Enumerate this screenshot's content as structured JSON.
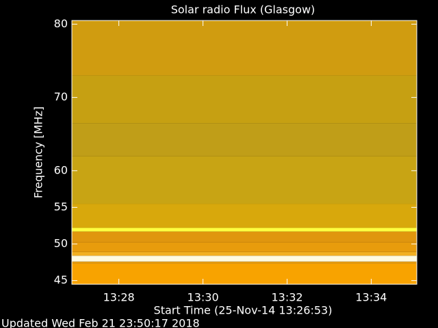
{
  "chart_data": {
    "type": "spectrogram",
    "title": "Solar radio Flux (Glasgow)",
    "x_label": "Start Time (25-Nov-14 13:26:53)",
    "y_label": "Frequency [MHz]",
    "xlim": [
      806.883,
      815.083
    ],
    "xticks": [
      {
        "value": 808,
        "label": "13:28"
      },
      {
        "value": 810,
        "label": "13:30"
      },
      {
        "value": 812,
        "label": "13:32"
      },
      {
        "value": 814,
        "label": "13:34"
      }
    ],
    "ylim": [
      44.5,
      80.5
    ],
    "yticks": [
      45,
      50,
      55,
      60,
      70,
      80
    ],
    "bands": [
      {
        "range": [
          44.5,
          47.3
        ],
        "color": "#f8a300"
      },
      {
        "range": [
          47.3,
          47.6
        ],
        "color": "#e39a10"
      },
      {
        "range": [
          47.6,
          48.4
        ],
        "color": "#fffbe0"
      },
      {
        "range": [
          48.4,
          48.9
        ],
        "color": "#f2b020"
      },
      {
        "range": [
          48.9,
          50.2
        ],
        "color": "#e89c0c"
      },
      {
        "range": [
          50.2,
          51.7
        ],
        "color": "#e0960e"
      },
      {
        "range": [
          51.7,
          52.2
        ],
        "color": "#ffff40"
      },
      {
        "range": [
          52.2,
          55.5
        ],
        "color": "#d8a80c"
      },
      {
        "range": [
          55.5,
          62.0
        ],
        "color": "#c8a414"
      },
      {
        "range": [
          62.0,
          66.5
        ],
        "color": "#c09e18"
      },
      {
        "range": [
          66.5,
          73.0
        ],
        "color": "#c6a012"
      },
      {
        "range": [
          73.0,
          80.5
        ],
        "color": "#d09c10"
      }
    ]
  },
  "footer": "Updated Wed Feb 21 23:50:17 2018"
}
